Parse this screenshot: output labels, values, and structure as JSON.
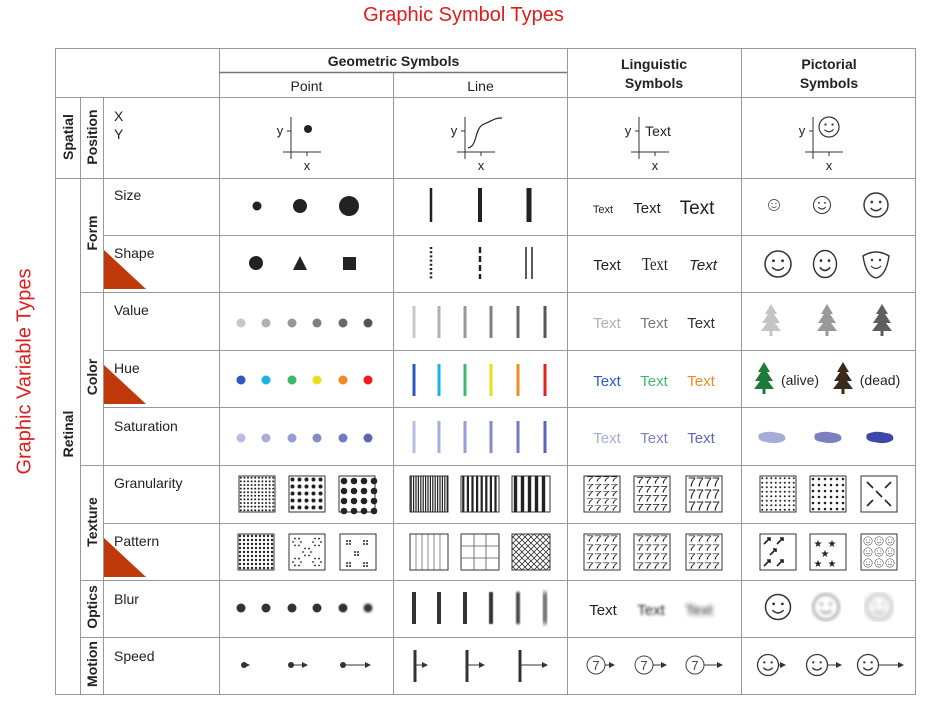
{
  "title": "Graphic Symbol Types",
  "side_title": "Graphic Variable Types",
  "columns": {
    "geometric": "Geometric Symbols",
    "point": "Point",
    "line": "Line",
    "linguistic": "Linguistic Symbols",
    "pictorial": "Pictorial Symbols"
  },
  "groups": {
    "spatial": "Spatial",
    "position": "Position",
    "retinal": "Retinal",
    "form": "Form",
    "color": "Color",
    "texture": "Texture",
    "optics": "Optics",
    "motion": "Motion"
  },
  "rows": {
    "xy_x": "X",
    "xy_y": "Y",
    "size": "Size",
    "shape": "Shape",
    "value": "Value",
    "hue": "Hue",
    "saturation": "Saturation",
    "granularity": "Granularity",
    "pattern": "Pattern",
    "blur": "Blur",
    "speed": "Speed"
  },
  "axes": {
    "x": "x",
    "y": "y"
  },
  "sample_text": "Text",
  "hue_labels": {
    "alive": "(alive)",
    "dead": "(dead)"
  },
  "speed_digit": "7",
  "granularity_text": "7777",
  "colors": {
    "accent_red": "#e21b1b",
    "corner_triangle": "#c0390b",
    "value_grays": [
      "#c8c8c8",
      "#b0b0b0",
      "#989898",
      "#808080",
      "#686868",
      "#555555"
    ],
    "hues": [
      "#2b59c3",
      "#1ab4e0",
      "#3cb96a",
      "#e8df1a",
      "#f08a24",
      "#e82020"
    ],
    "saturation": [
      "#b8bde6",
      "#a7addc",
      "#969dd2",
      "#848cc8",
      "#737bbf",
      "#5d66b5"
    ],
    "text_value": [
      "#b0b0b0",
      "#7a7a7a",
      "#333333"
    ],
    "text_hue": [
      "#2b59c3",
      "#3cb96a",
      "#f08a24"
    ],
    "text_saturation": [
      "#a8acd8",
      "#7a80c0",
      "#5d66b5"
    ],
    "tree_alive": "#1e7a3a",
    "tree_dead": "#3a2a1a"
  }
}
